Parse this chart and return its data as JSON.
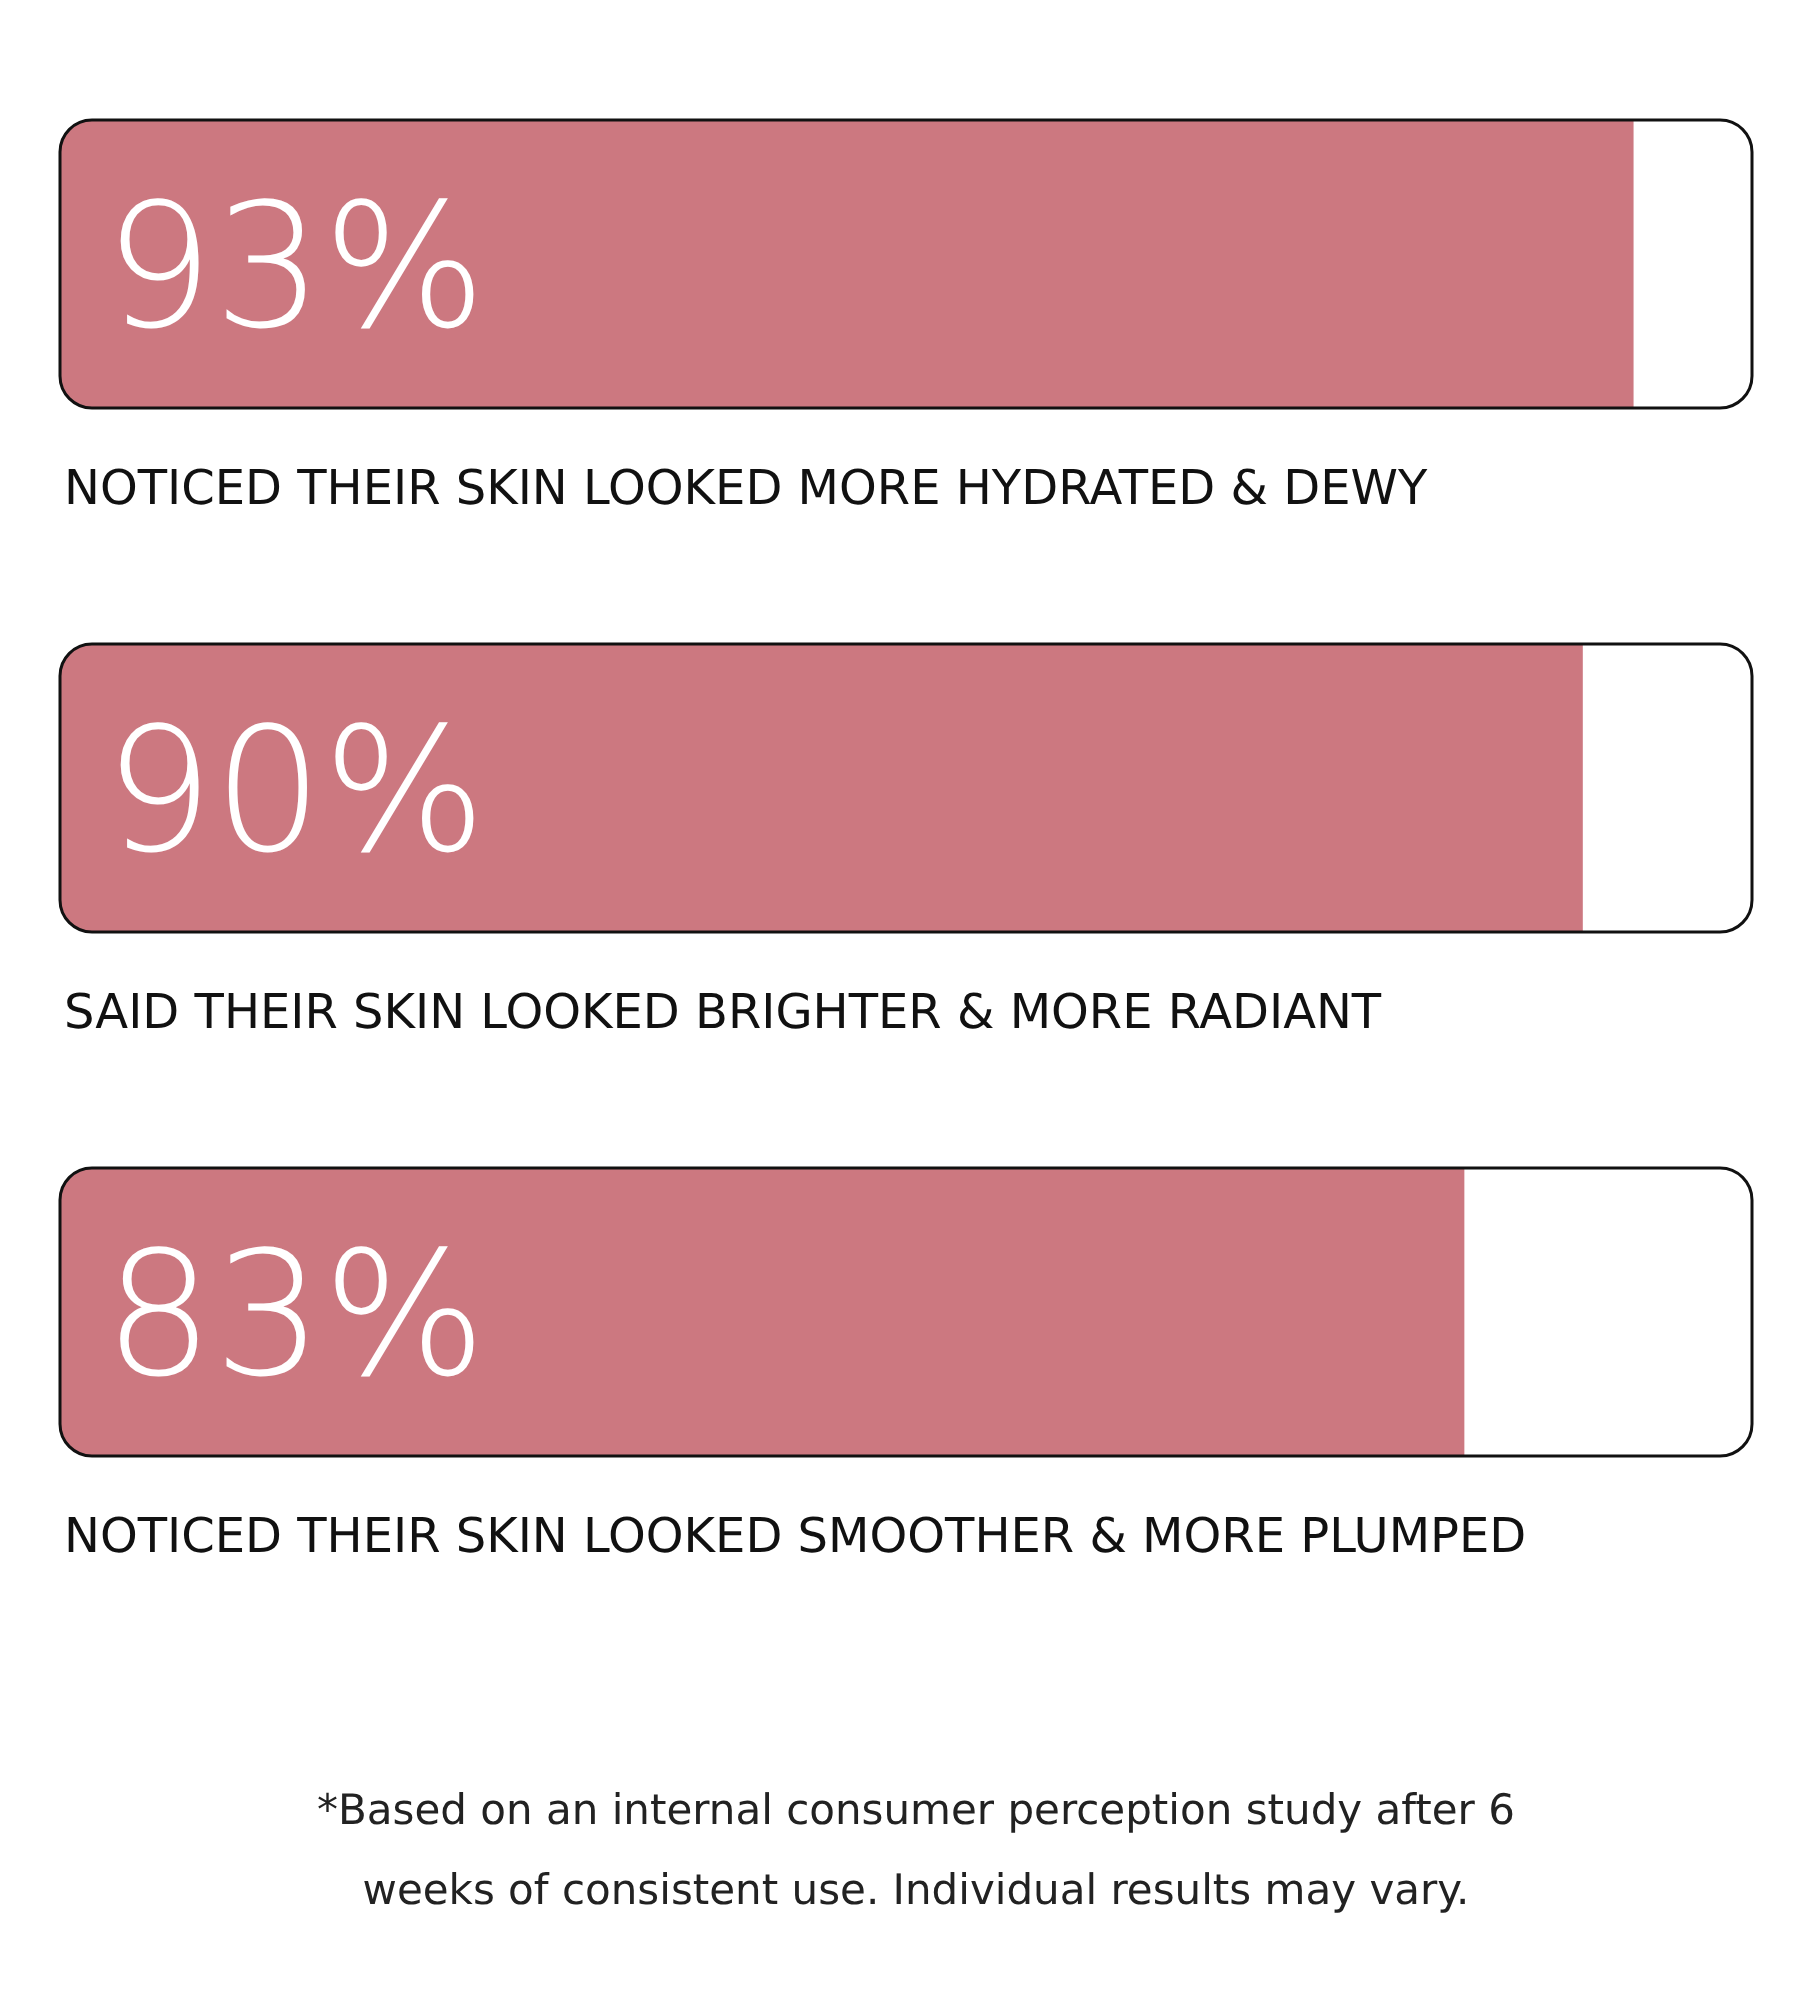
{
  "chart_data": {
    "type": "bar",
    "orientation": "horizontal",
    "categories": [
      "NOTICED THEIR SKIN LOOKED MORE HYDRATED & DEWY",
      "SAID THEIR SKIN LOOKED BRIGHTER & MORE RADIANT",
      "NOTICED THEIR SKIN LOOKED SMOOTHER & MORE PLUMPED"
    ],
    "values": [
      93,
      90,
      83
    ],
    "color": "#cc7880",
    "xlim": [
      0,
      100
    ],
    "value_labels": [
      "93%",
      "90%",
      "83%"
    ],
    "annotations": [
      "*Based on an internal consumer perception study after 6 weeks of consistent use. Individual results may vary."
    ]
  }
}
